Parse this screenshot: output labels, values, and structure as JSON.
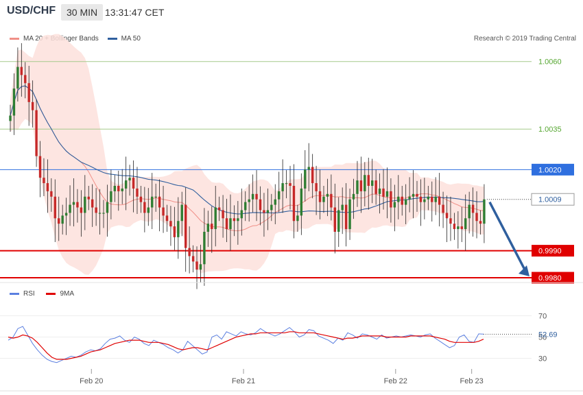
{
  "header": {
    "symbol": "USD/CHF",
    "interval": "30 MIN",
    "time": "13:31:47 CET"
  },
  "legend": {
    "bollinger": "MA 20 + Bollinger Bands",
    "ma50": "MA 50"
  },
  "credit": "Research © 2019 Trading Central",
  "rsi_legend": {
    "rsi": "RSI",
    "ma9": "9MA"
  },
  "colors": {
    "up_candle": "#2e7d32",
    "down_candle": "#c62828",
    "bollinger_fill": "#fde0dc",
    "bollinger_line": "#f08f87",
    "ma50": "#2f5f9e",
    "resistance": "#a5c98a",
    "resistance_text": "#55a630",
    "pivot": "#2f6fdf",
    "support": "#e00000",
    "arrow": "#2f5f9e",
    "rsi": "#5b7fe0",
    "rsi_ma": "#e00000"
  },
  "chart_data": [
    {
      "type": "candlestick",
      "title": "USD/CHF",
      "interval": "30 MIN",
      "ylim": [
        0.998,
        1.0065
      ],
      "x_tick_labels": [
        "Feb 20",
        "Feb 21",
        "Feb 22",
        "Feb 23"
      ],
      "levels": [
        {
          "label": "1.0060",
          "value": 1.006,
          "kind": "resistance"
        },
        {
          "label": "1.0035",
          "value": 1.0035,
          "kind": "resistance"
        },
        {
          "label": "1.0020",
          "value": 1.002,
          "kind": "pivot"
        },
        {
          "label": "1.0009",
          "value": 1.0009,
          "kind": "last_price"
        },
        {
          "label": "0.9990",
          "value": 0.999,
          "kind": "support"
        },
        {
          "label": "0.9980",
          "value": 0.998,
          "kind": "support"
        }
      ],
      "closes": [
        1.004,
        1.005,
        1.0058,
        1.0055,
        1.0052,
        1.0045,
        1.0042,
        1.0025,
        1.0017,
        1.0015,
        1.0012,
        1.001,
        1.0002,
        1.0,
        1.0003,
        1.0004,
        1.0007,
        1.0008,
        1.0006,
        1.0004,
        1.001,
        1.0009,
        1.0006,
        1.0004,
        1.0004,
        1.0004,
        1.0008,
        1.0012,
        1.0014,
        1.0012,
        1.0013,
        1.0016,
        1.0017,
        1.0013,
        1.001,
        1.0008,
        1.0004,
        1.0006,
        1.001,
        1.001,
        1.0006,
        1.0003,
        1.0001,
        0.9999,
        0.9995,
        1.0001,
        1.0007,
        0.9991,
        0.9988,
        0.9986,
        0.9983,
        0.9985,
        0.9997,
        1.0,
        0.9998,
        1.0006,
        1.0005,
        1.0002,
        0.9998,
        1.0002,
        1.0001,
        1.0002,
        1.0005,
        1.0008,
        1.0009,
        1.0011,
        1.0009,
        1.0005,
        1.0004,
        1.0005,
        1.0007,
        1.0009,
        1.0012,
        1.0015,
        1.0015,
        1.0014,
        1.0001,
        1.0003,
        1.0013,
        1.002,
        1.0021,
        1.0015,
        1.0012,
        1.0008,
        1.001,
        1.0011,
        1.0006,
        0.9997,
        1.0005,
        1.0007,
        0.9998,
        1.0009,
        1.0011,
        1.0016,
        1.0012,
        1.0018,
        1.0014,
        1.0016,
        1.0011,
        1.0013,
        1.001,
        1.0012,
        1.0006,
        1.0008,
        1.001,
        1.0007,
        1.0009,
        1.001,
        1.0011,
        1.001,
        1.0008,
        1.0009,
        1.001,
        1.0008,
        1.001,
        1.0007,
        1.0004,
        1.0002,
        1.0,
        0.9998,
        0.9999,
        0.9998,
        1.0002,
        1.0007,
        1.0004,
        1.0001,
        1.0,
        1.0009
      ]
    },
    {
      "type": "line",
      "title": "RSI",
      "ylim": [
        20,
        80
      ],
      "y_ticks": [
        30,
        50,
        70
      ],
      "last_value_label": "52.69",
      "series": [
        {
          "name": "RSI",
          "values": [
            47,
            50,
            58,
            60,
            52,
            44,
            38,
            33,
            29,
            27,
            26,
            28,
            30,
            32,
            31,
            33,
            36,
            38,
            37,
            39,
            44,
            48,
            49,
            51,
            47,
            45,
            50,
            48,
            44,
            42,
            47,
            45,
            43,
            40,
            38,
            35,
            38,
            46,
            42,
            38,
            34,
            36,
            50,
            52,
            48,
            55,
            53,
            51,
            55,
            53,
            52,
            54,
            58,
            55,
            53,
            51,
            53,
            56,
            59,
            55,
            50,
            52,
            57,
            56,
            51,
            49,
            47,
            44,
            49,
            47,
            54,
            52,
            49,
            53,
            52,
            50,
            48,
            52,
            49,
            50,
            51,
            50,
            51,
            52,
            51,
            50,
            52,
            53,
            49,
            46,
            43,
            40,
            42,
            50,
            52,
            46,
            45,
            53,
            52.69
          ]
        },
        {
          "name": "9MA",
          "values": [
            50,
            49,
            50,
            52,
            51,
            49,
            45,
            40,
            35,
            31,
            29,
            29,
            29,
            30,
            31,
            32,
            34,
            36,
            37,
            38,
            40,
            42,
            44,
            45,
            46,
            47,
            47,
            47,
            46,
            45,
            45,
            45,
            44,
            43,
            41,
            39,
            38,
            39,
            40,
            40,
            39,
            38,
            40,
            42,
            44,
            46,
            48,
            50,
            51,
            52,
            53,
            53,
            54,
            54,
            54,
            54,
            54,
            54,
            55,
            55,
            54,
            54,
            54,
            54,
            53,
            52,
            51,
            50,
            49,
            48,
            49,
            49,
            50,
            51,
            51,
            51,
            51,
            51,
            50,
            50,
            50,
            50,
            50,
            51,
            51,
            51,
            51,
            51,
            50,
            49,
            48,
            46,
            45,
            45,
            45,
            45,
            45,
            46,
            48
          ]
        }
      ]
    }
  ]
}
